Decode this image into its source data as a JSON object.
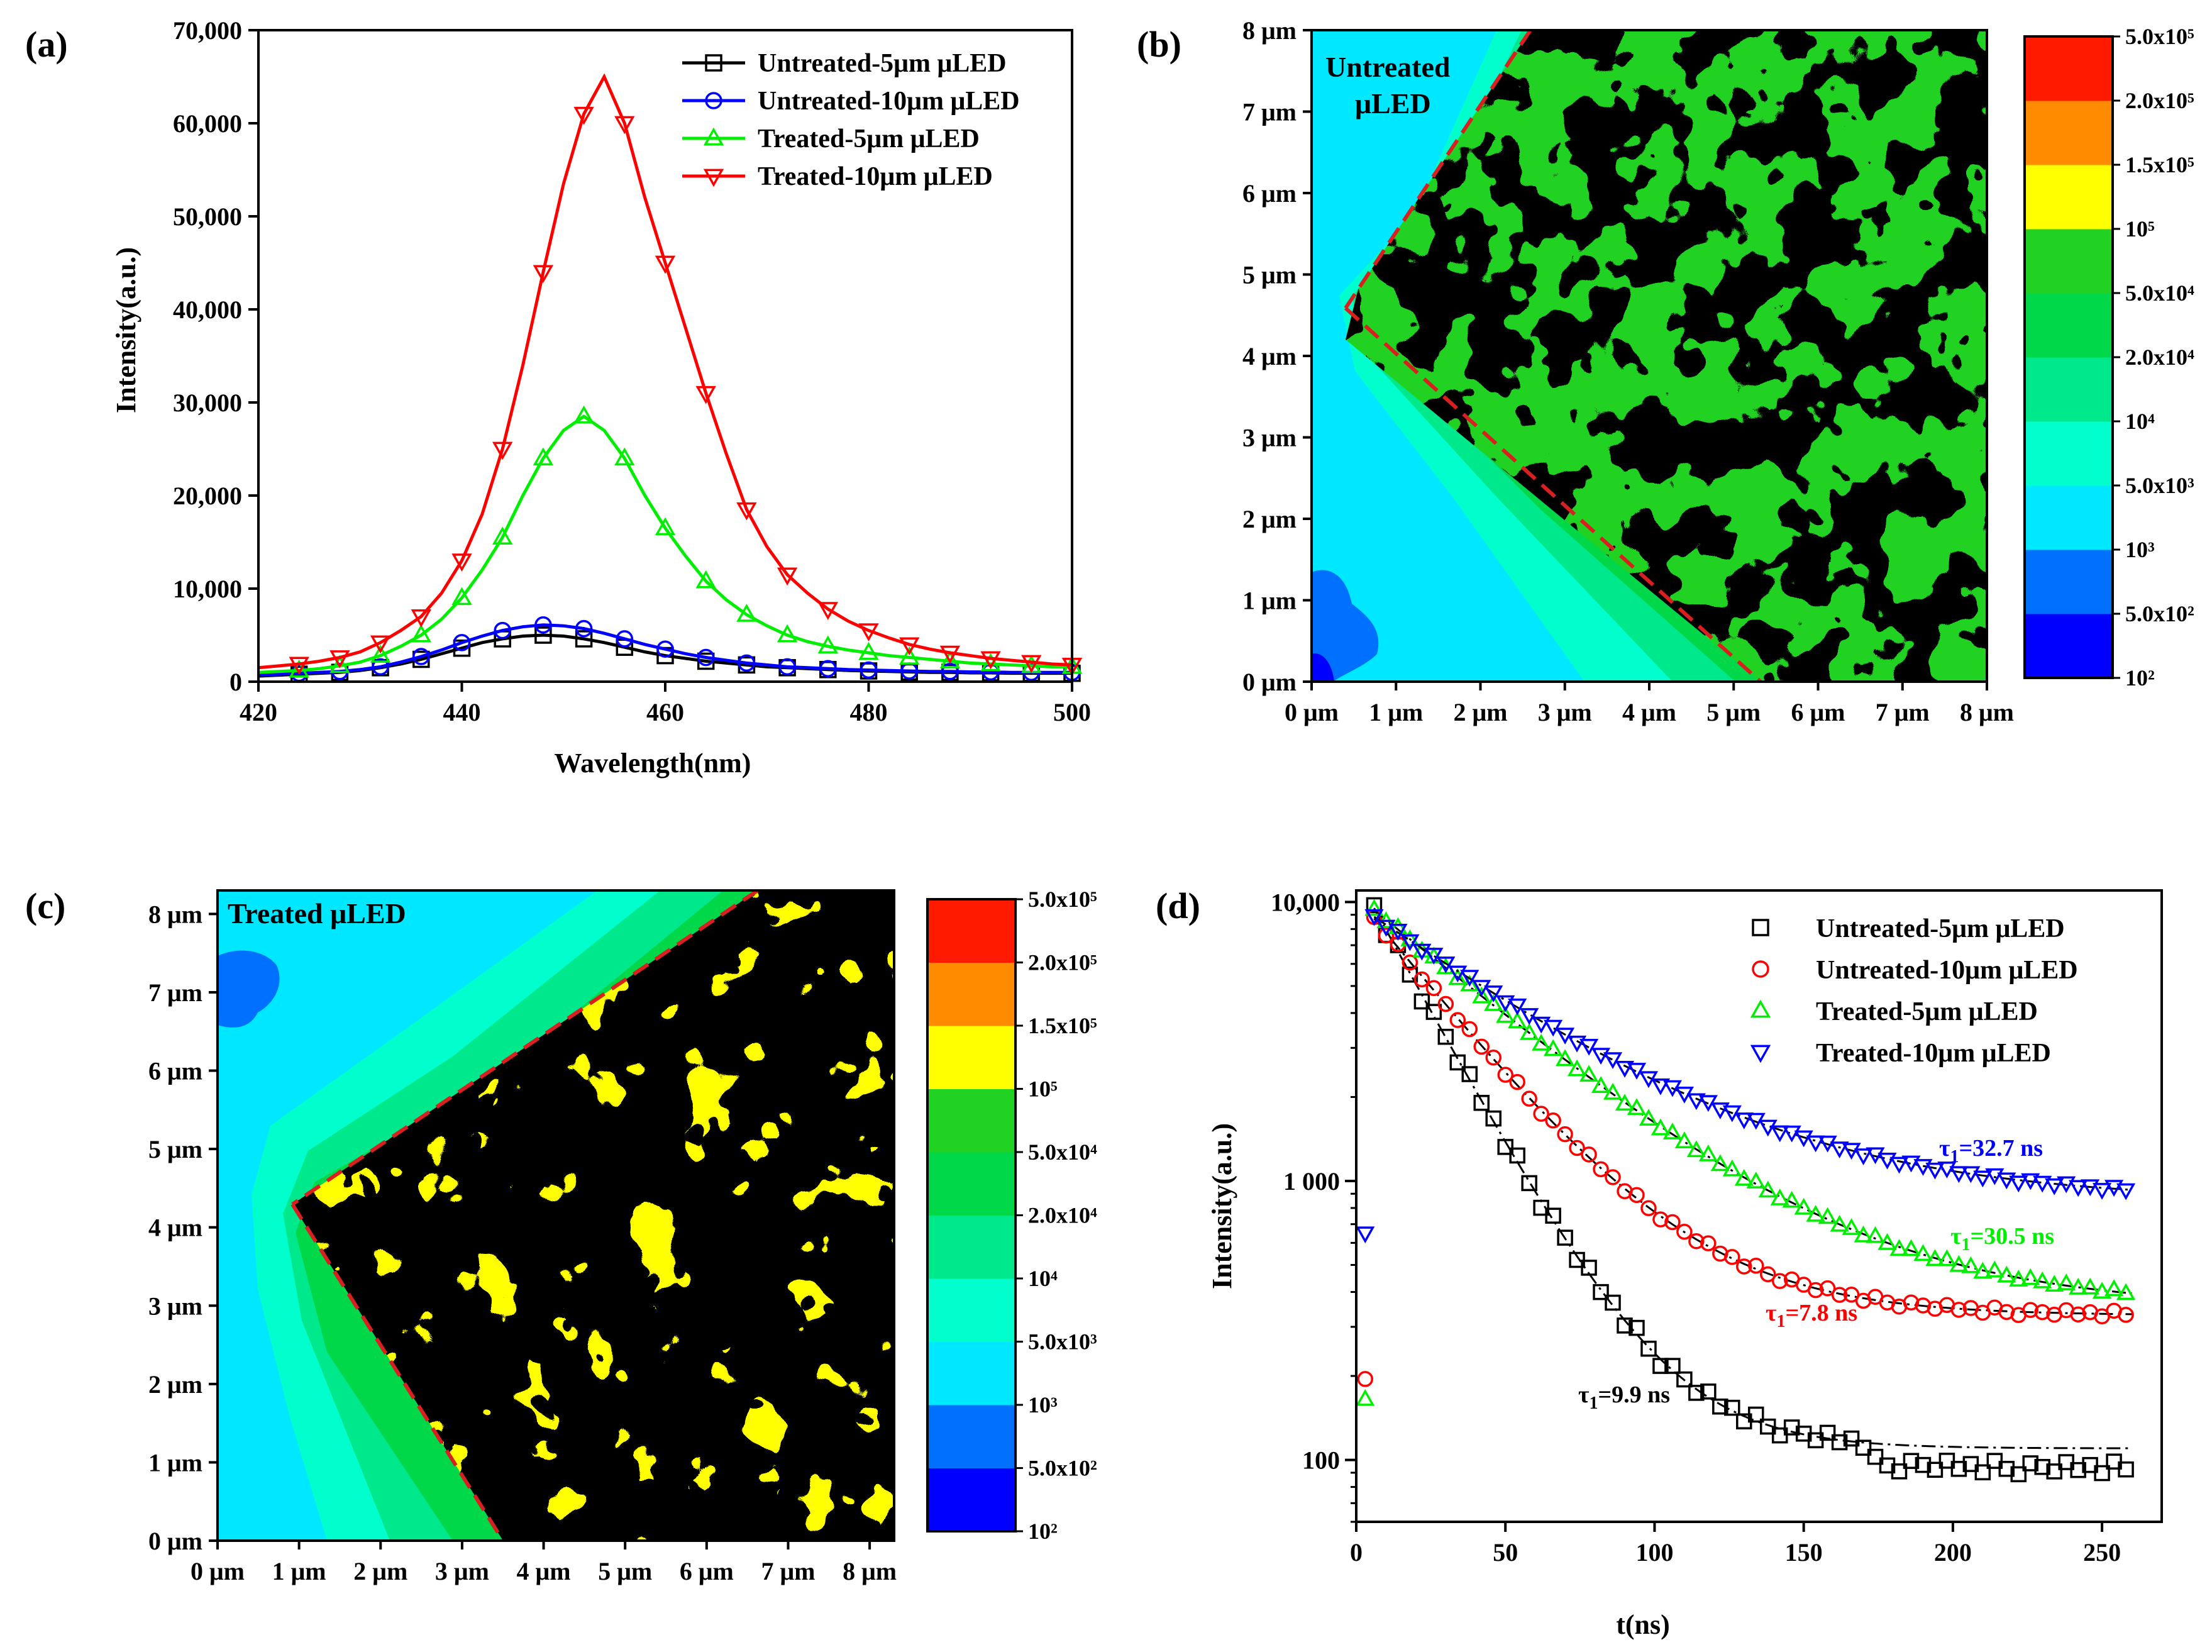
{
  "chart_data": [
    {
      "panel": "(a)",
      "type": "line",
      "xlabel": "Wavelength(nm)",
      "ylabel": "Intensity(a.u.)",
      "xlim": [
        420,
        500
      ],
      "ylim": [
        0,
        70000
      ],
      "xticks": [
        "420",
        "440",
        "460",
        "480",
        "500"
      ],
      "yticks": [
        "0",
        "10,000",
        "20,000",
        "30,000",
        "40,000",
        "50,000",
        "60,000",
        "70,000"
      ],
      "x": [
        420,
        422,
        424,
        426,
        428,
        430,
        432,
        434,
        436,
        438,
        440,
        442,
        444,
        446,
        448,
        450,
        452,
        454,
        456,
        458,
        460,
        462,
        464,
        466,
        468,
        470,
        472,
        474,
        476,
        478,
        480,
        482,
        484,
        486,
        488,
        490,
        492,
        494,
        496,
        498,
        500
      ],
      "series": [
        {
          "name": "Untreated-5μm μLED",
          "color": "#000000",
          "marker": "square",
          "values": [
            600,
            700,
            800,
            900,
            1000,
            1200,
            1500,
            1900,
            2400,
            3000,
            3600,
            4200,
            4600,
            4900,
            5000,
            4900,
            4600,
            4200,
            3700,
            3200,
            2800,
            2500,
            2200,
            2000,
            1800,
            1600,
            1500,
            1400,
            1300,
            1200,
            1150,
            1100,
            1050,
            1000,
            1000,
            950,
            950,
            900,
            900,
            900,
            900
          ]
        },
        {
          "name": "Untreated-10μm μLED",
          "color": "#0000ff",
          "marker": "circle",
          "values": [
            700,
            800,
            900,
            1000,
            1100,
            1300,
            1600,
            2100,
            2700,
            3400,
            4200,
            4900,
            5500,
            5900,
            6100,
            6000,
            5700,
            5200,
            4600,
            4000,
            3500,
            3000,
            2600,
            2300,
            2000,
            1800,
            1600,
            1500,
            1400,
            1300,
            1250,
            1200,
            1150,
            1100,
            1100,
            1050,
            1050,
            1000,
            1000,
            1000,
            1000
          ]
        },
        {
          "name": "Treated-5μm μLED",
          "color": "#00ee00",
          "marker": "triangle-up",
          "values": [
            1000,
            1100,
            1200,
            1400,
            1700,
            2100,
            2800,
            3800,
            5000,
            6700,
            9000,
            12000,
            15500,
            20000,
            24000,
            27000,
            28500,
            27000,
            24000,
            20000,
            16500,
            13500,
            10800,
            8800,
            7200,
            6000,
            5000,
            4300,
            3800,
            3400,
            3100,
            2800,
            2600,
            2400,
            2200,
            2000,
            1900,
            1800,
            1700,
            1600,
            1600
          ]
        },
        {
          "name": "Treated-10μm μLED",
          "color": "#ff0000",
          "marker": "triangle-down",
          "values": [
            1500,
            1700,
            1900,
            2200,
            2600,
            3200,
            4200,
            5500,
            7000,
            9500,
            13000,
            18000,
            25000,
            34000,
            44000,
            53500,
            61000,
            65000,
            60000,
            52000,
            45000,
            38000,
            31000,
            24500,
            18500,
            14500,
            11500,
            9500,
            7800,
            6500,
            5500,
            4700,
            4000,
            3500,
            3100,
            2800,
            2500,
            2300,
            2100,
            1900,
            1800
          ]
        }
      ]
    },
    {
      "panel": "(b)",
      "type": "heatmap",
      "inset_label": [
        "Untreated",
        "μLED"
      ],
      "xticks": [
        "0 μm",
        "1 μm",
        "2 μm",
        "3 μm",
        "4 μm",
        "5 μm",
        "6 μm",
        "7 μm",
        "8 μm"
      ],
      "yticks": [
        "0 μm",
        "1 μm",
        "2 μm",
        "3 μm",
        "4 μm",
        "5 μm",
        "6 μm",
        "7 μm",
        "8 μm"
      ],
      "xlim": [
        0,
        8
      ],
      "ylim": [
        0,
        8
      ],
      "colorbar": {
        "levels": [
          {
            "label": "10²",
            "color": "#0000ff"
          },
          {
            "label": "5.0x10²",
            "color": "#0070ff"
          },
          {
            "label": "10³",
            "color": "#00e8ff"
          },
          {
            "label": "5.0x10³",
            "color": "#00ffcc"
          },
          {
            "label": "10⁴",
            "color": "#00e88c"
          },
          {
            "label": "2.0x10⁴",
            "color": "#00d84a"
          },
          {
            "label": "5.0x10⁴",
            "color": "#22d222"
          },
          {
            "label": "10⁵",
            "color": "#ffff00"
          },
          {
            "label": "1.5x10⁵",
            "color": "#ff8c00"
          },
          {
            "label": "2.0x10⁵",
            "color": "#ff1a00"
          },
          {
            "label": "5.0x10⁵",
            "color": ""
          }
        ]
      }
    },
    {
      "panel": "(c)",
      "type": "heatmap",
      "inset_label": [
        "Treated μLED"
      ],
      "xticks": [
        "0 μm",
        "1 μm",
        "2 μm",
        "3 μm",
        "4 μm",
        "5 μm",
        "6 μm",
        "7 μm",
        "8 μm"
      ],
      "yticks": [
        "0 μm",
        "1 μm",
        "2 μm",
        "3 μm",
        "4 μm",
        "5 μm",
        "6 μm",
        "7 μm",
        "8 μm"
      ],
      "xlim": [
        0,
        8.3
      ],
      "ylim": [
        0,
        8.3
      ],
      "colorbar_same_as": "(b)"
    },
    {
      "panel": "(d)",
      "type": "scatter",
      "xlabel": "t(ns)",
      "ylabel": "Intensity(a.u.)",
      "xlim": [
        0,
        270
      ],
      "ylim_log": [
        60,
        11000
      ],
      "xticks": [
        "0",
        "50",
        "100",
        "150",
        "200",
        "250"
      ],
      "yticks": [
        {
          "value": 10000,
          "label": "10,000"
        },
        {
          "value": 1000,
          "label": "1 000"
        },
        {
          "value": 100,
          "label": "100"
        }
      ],
      "series": [
        {
          "name": "Untreated-5μm μLED",
          "color": "#000000",
          "marker": "square",
          "tau_label": "τ",
          "tau_sub": "1",
          "tau_value": "=9.9 ns",
          "fit": {
            "A": 9400,
            "tau": 22,
            "C": 110
          },
          "noise": 0.06,
          "extra": []
        },
        {
          "name": "Untreated-10μm μLED",
          "color": "#ff0000",
          "marker": "circle",
          "tau_label": "τ",
          "tau_sub": "1",
          "tau_value": "=7.8 ns",
          "fit": {
            "A": 8400,
            "tau": 32,
            "C": 330
          },
          "noise": 0.03,
          "extra": [
            {
              "t": 3,
              "v": 195
            }
          ]
        },
        {
          "name": "Treated-5μm μLED",
          "color": "#00ee00",
          "marker": "triangle-up",
          "tau_label": "τ",
          "tau_sub": "1",
          "tau_value": "=30.5 ns",
          "fit": {
            "A": 9000,
            "tau": 48,
            "C": 350
          },
          "noise": 0.02,
          "extra": [
            {
              "t": 3,
              "v": 165
            }
          ]
        },
        {
          "name": "Treated-10μm μLED",
          "color": "#0000ff",
          "marker": "triangle-down",
          "tau_label": "τ",
          "tau_sub": "1",
          "tau_value": "=32.7 ns",
          "fit": {
            "A": 8000,
            "tau": 55,
            "C": 850
          },
          "noise": 0.02,
          "extra": [
            {
              "t": 3,
              "v": 650
            }
          ]
        }
      ]
    }
  ]
}
